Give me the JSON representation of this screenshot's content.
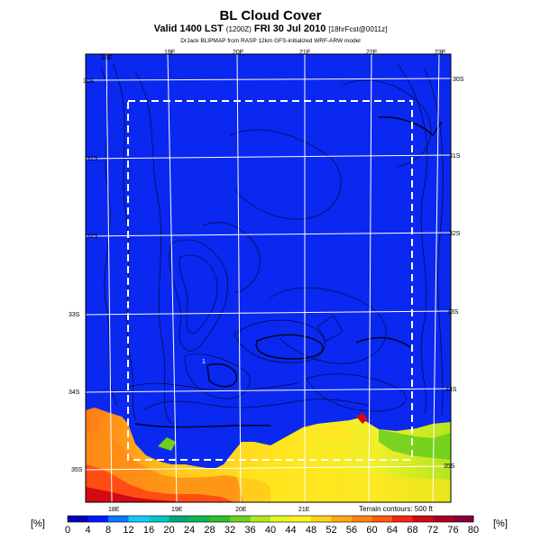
{
  "header": {
    "title": "BL Cloud Cover",
    "valid_line": "Valid 1400 LST",
    "valid_code": "(1200Z)",
    "valid_date": "FRI 30 Jul 2010",
    "forecast": "[18hrFcst@0011z]",
    "credit": "DrJack BLIPMAP from RASP 12km GFS-initialized WRF-ARW model"
  },
  "map": {
    "top_lon_labels": [
      "18E",
      "19E",
      "20E",
      "21E",
      "22E",
      "23E"
    ],
    "bottom_lon_labels": [
      "18E",
      "19E",
      "20E",
      "21E"
    ],
    "left_lat_labels": [
      "30S",
      "31S",
      "32S",
      "33S",
      "34S",
      "35S"
    ],
    "right_lat_labels": [
      "30S",
      "31S",
      "32S",
      "33S",
      "34S",
      "35S"
    ],
    "spot_label": "1",
    "terrain_note": "Terrain contours: 500 ft",
    "ocean_color": "#0a28f0"
  },
  "colorbar": {
    "unit_left": "[%]",
    "unit_right": "[%]",
    "labels": [
      "0",
      "4",
      "8",
      "12",
      "16",
      "20",
      "24",
      "28",
      "32",
      "36",
      "40",
      "44",
      "48",
      "52",
      "56",
      "60",
      "64",
      "68",
      "72",
      "76",
      "80"
    ],
    "colors": [
      "#0000b4",
      "#0019ff",
      "#0a78ff",
      "#14c8ff",
      "#00c8c8",
      "#00aa78",
      "#10b450",
      "#2dbe2d",
      "#6ecf1e",
      "#b4e61e",
      "#e6f51e",
      "#fff01e",
      "#ffd21e",
      "#ffaa14",
      "#ff8214",
      "#ff5a14",
      "#f02814",
      "#d20a14",
      "#aa0028",
      "#82003c"
    ]
  }
}
